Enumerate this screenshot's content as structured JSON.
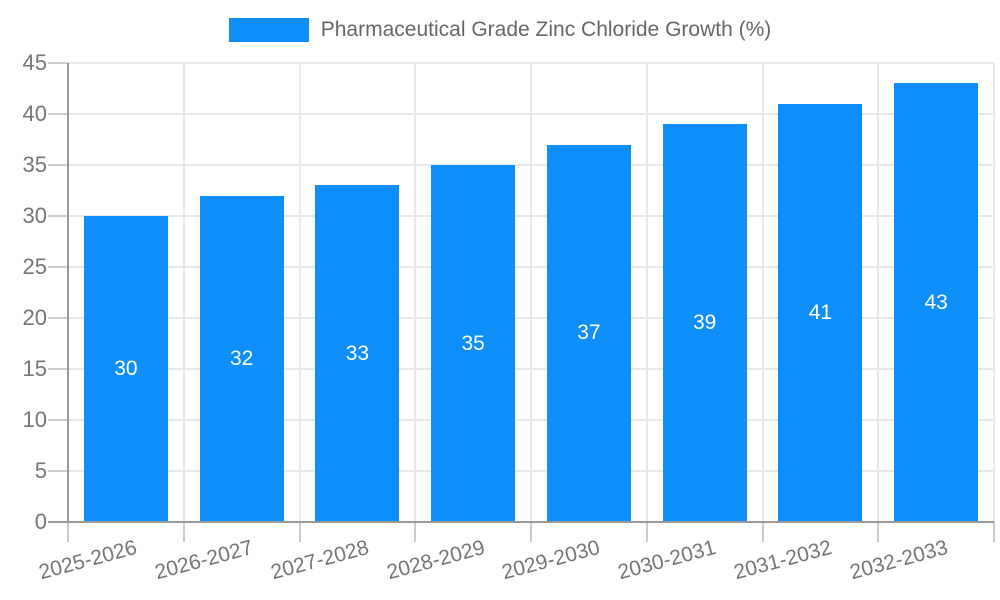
{
  "legend": {
    "position": "top",
    "series_label": "Pharmaceutical Grade Zinc Chloride Growth (%)"
  },
  "chart_data": {
    "type": "bar",
    "title": "Pharmaceutical Grade Zinc Chloride Growth (%)",
    "categories": [
      "2025-2026",
      "2026-2027",
      "2027-2028",
      "2028-2029",
      "2029-2030",
      "2030-2031",
      "2031-2032",
      "2032-2033"
    ],
    "values": [
      30,
      32,
      33,
      35,
      37,
      39,
      41,
      43
    ],
    "value_labels": [
      "30",
      "32",
      "33",
      "35",
      "37",
      "39",
      "41",
      "43"
    ],
    "xlabel": "",
    "ylabel": "",
    "ylim": [
      0,
      45
    ],
    "yticks": [
      0,
      5,
      10,
      15,
      20,
      25,
      30,
      35,
      40,
      45
    ],
    "grid": true,
    "legend_position": "top",
    "bar_color": "#0d8ef9",
    "value_label_color": "#ffffff",
    "x_label_rotation_deg": -15
  }
}
